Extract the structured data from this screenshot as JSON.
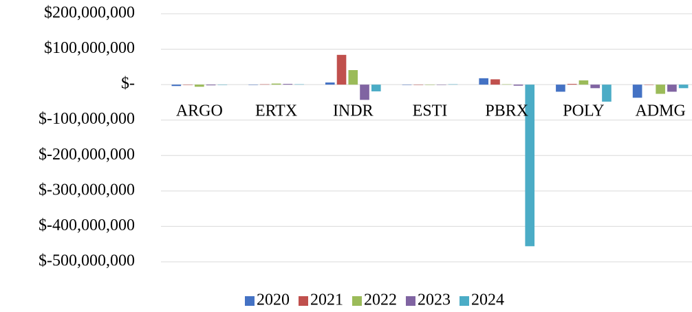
{
  "chart_data": {
    "type": "bar",
    "categories": [
      "ARGO",
      "ERTX",
      "INDR",
      "ESTI",
      "PBRX",
      "POLY",
      "ADMG"
    ],
    "series": [
      {
        "name": "2020",
        "color": "#4472c4",
        "values": [
          -4000000,
          0,
          6000000,
          0,
          18000000,
          -20000000,
          -37000000
        ]
      },
      {
        "name": "2021",
        "color": "#c0504d",
        "values": [
          -1000000,
          1000000,
          84000000,
          0,
          15000000,
          2000000,
          0
        ]
      },
      {
        "name": "2022",
        "color": "#9bbb59",
        "values": [
          -6000000,
          3000000,
          41000000,
          0,
          1000000,
          12000000,
          -26000000
        ]
      },
      {
        "name": "2023",
        "color": "#8064a2",
        "values": [
          -2000000,
          2000000,
          -43000000,
          0,
          -3000000,
          -10000000,
          -20000000
        ]
      },
      {
        "name": "2024",
        "color": "#4bacc6",
        "values": [
          -1000000,
          1000000,
          -19000000,
          1000000,
          -456000000,
          -48000000,
          -10000000
        ]
      }
    ],
    "ylim": [
      -500000000,
      200000000
    ],
    "yticks": [
      {
        "value": 200000000,
        "label": "$200,000,000"
      },
      {
        "value": 100000000,
        "label": "$100,000,000"
      },
      {
        "value": 0,
        "label": "$-"
      },
      {
        "value": -100000000,
        "label": "$-100,000,000"
      },
      {
        "value": -200000000,
        "label": "$-200,000,000"
      },
      {
        "value": -300000000,
        "label": "$-300,000,000"
      },
      {
        "value": -400000000,
        "label": "$-400,000,000"
      },
      {
        "value": -500000000,
        "label": "$-500,000,000"
      }
    ],
    "grid": true,
    "legend": "bottom"
  }
}
